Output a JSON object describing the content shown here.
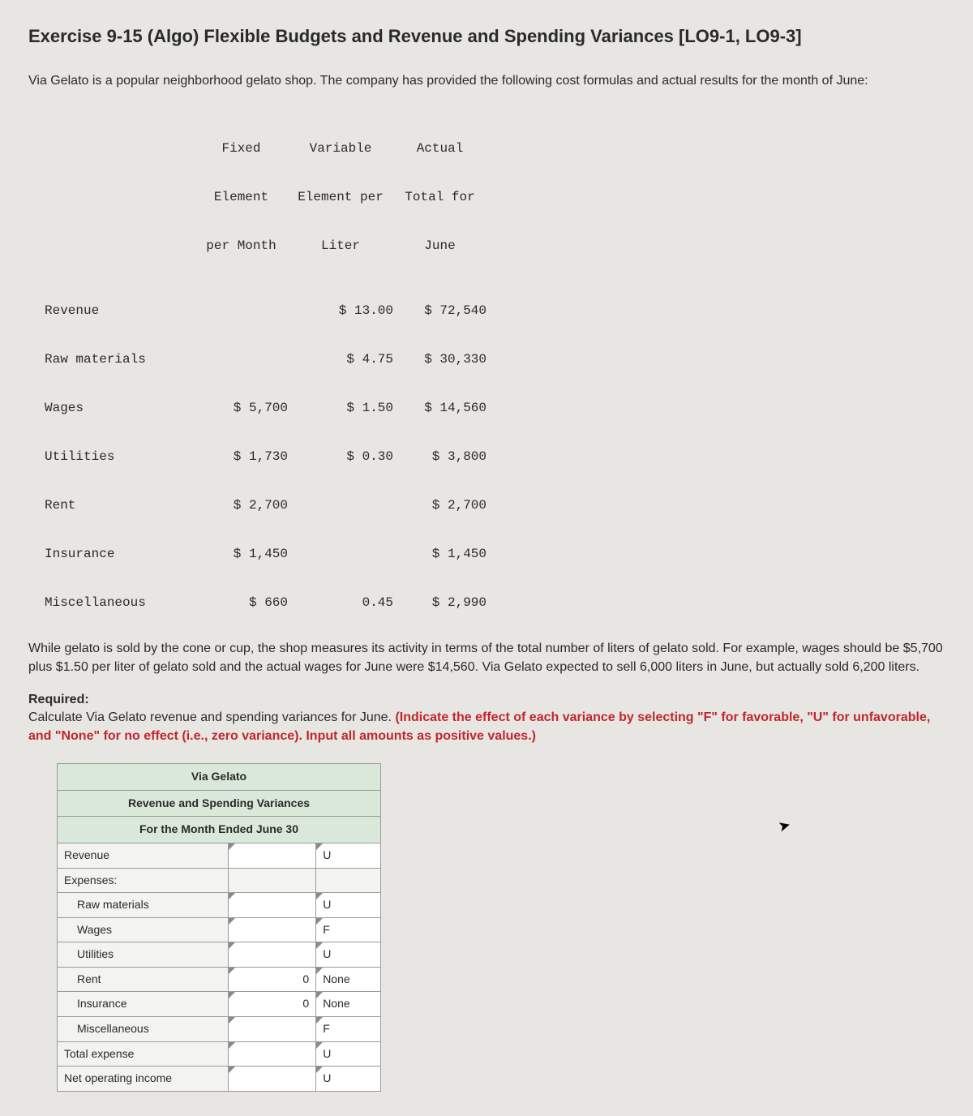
{
  "title": "Exercise 9-15 (Algo) Flexible Budgets and Revenue and Spending Variances [LO9-1, LO9-3]",
  "intro": "Via Gelato is a popular neighborhood gelato shop. The company has provided the following cost formulas and actual results for the month of June:",
  "cost_table": {
    "headers": {
      "a1": "Fixed",
      "a2": "Element",
      "a3": "per Month",
      "b1": "Variable",
      "b2": "Element per",
      "b3": "Liter",
      "c1": "Actual",
      "c2": "Total for",
      "c3": "June"
    },
    "rows": [
      {
        "label": "Revenue",
        "a": "",
        "b": "$ 13.00",
        "c": "$ 72,540"
      },
      {
        "label": "Raw materials",
        "a": "",
        "b": "$ 4.75",
        "c": "$ 30,330"
      },
      {
        "label": "Wages",
        "a": "$ 5,700",
        "b": "$ 1.50",
        "c": "$ 14,560"
      },
      {
        "label": "Utilities",
        "a": "$ 1,730",
        "b": "$ 0.30",
        "c": "$ 3,800"
      },
      {
        "label": "Rent",
        "a": "$ 2,700",
        "b": "",
        "c": "$ 2,700"
      },
      {
        "label": "Insurance",
        "a": "$ 1,450",
        "b": "",
        "c": "$ 1,450"
      },
      {
        "label": "Miscellaneous",
        "a": "$ 660",
        "b": "0.45",
        "c": "$ 2,990"
      }
    ]
  },
  "explanation": "While gelato is sold by the cone or cup, the shop measures its activity in terms of the total number of liters of gelato sold. For example, wages should be $5,700 plus $1.50 per liter of gelato sold and the actual wages for June were $14,560. Via Gelato expected to sell 6,000 liters in June, but actually sold 6,200 liters.",
  "required_label": "Required:",
  "required_text": "Calculate Via Gelato revenue and spending variances for June. ",
  "instruction": "(Indicate the effect of each variance by selecting \"F\" for favorable, \"U\" for unfavorable, and \"None\" for no effect (i.e., zero variance). Input all amounts as positive values.)",
  "answer_table": {
    "title1": "Via Gelato",
    "title2": "Revenue and Spending Variances",
    "title3": "For the Month Ended June 30",
    "rows": [
      {
        "label": "Revenue",
        "indent": false,
        "amount": "",
        "effect": "U",
        "input_like": true
      },
      {
        "label": "Expenses:",
        "indent": false,
        "amount": "",
        "effect": "",
        "input_like": false
      },
      {
        "label": "Raw materials",
        "indent": true,
        "amount": "",
        "effect": "U",
        "input_like": true
      },
      {
        "label": "Wages",
        "indent": true,
        "amount": "",
        "effect": "F",
        "input_like": true
      },
      {
        "label": "Utilities",
        "indent": true,
        "amount": "",
        "effect": "U",
        "input_like": true
      },
      {
        "label": "Rent",
        "indent": true,
        "amount": "0",
        "effect": "None",
        "input_like": true
      },
      {
        "label": "Insurance",
        "indent": true,
        "amount": "0",
        "effect": "None",
        "input_like": true
      },
      {
        "label": "Miscellaneous",
        "indent": true,
        "amount": "",
        "effect": "F",
        "input_like": true
      },
      {
        "label": "Total expense",
        "indent": false,
        "amount": "",
        "effect": "U",
        "input_like": true
      },
      {
        "label": "Net operating income",
        "indent": false,
        "amount": "",
        "effect": "U",
        "input_like": true
      }
    ]
  },
  "colors": {
    "page_bg": "#e8e6e3",
    "header_row_bg": "#d9e8d9",
    "cell_bg": "#ffffff",
    "label_bg": "#f3f3f1",
    "border": "#9a9a98",
    "instruction": "#c0272d",
    "text": "#2a2a2a"
  }
}
